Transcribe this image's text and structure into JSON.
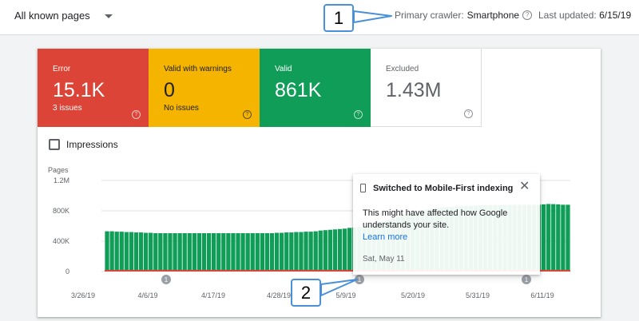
{
  "header": {
    "page_filter": "All known pages",
    "crawler_label": "Primary crawler:",
    "crawler_value": "Smartphone",
    "updated_label": "Last updated:",
    "updated_value": "6/15/19"
  },
  "tiles": {
    "error": {
      "label": "Error",
      "value": "15.1K",
      "sub": "3 issues"
    },
    "warnings": {
      "label": "Valid with warnings",
      "value": "0",
      "sub": "No issues"
    },
    "valid": {
      "label": "Valid",
      "value": "861K",
      "sub": ""
    },
    "excluded": {
      "label": "Excluded",
      "value": "1.43M",
      "sub": ""
    }
  },
  "impressions_label": "Impressions",
  "chart_data": {
    "type": "bar",
    "ylabel": "Pages",
    "yticks": [
      "1.2M",
      "800K",
      "400K",
      "0"
    ],
    "ylim": [
      0,
      1200000
    ],
    "xticks": [
      "3/26/19",
      "4/6/19",
      "4/17/19",
      "4/28/19",
      "5/9/19",
      "5/20/19",
      "5/31/19",
      "6/11/19"
    ],
    "colors": {
      "valid": "#0f9d58",
      "error": "#db4437",
      "grid": "#e0e0e0"
    },
    "annotation_marker": "1",
    "series": [
      {
        "name": "Valid",
        "values": [
          530000,
          530000,
          525000,
          525000,
          520000,
          520000,
          515000,
          515000,
          510000,
          510000,
          505000,
          505000,
          505000,
          505000,
          505000,
          505000,
          505000,
          505000,
          505000,
          505000,
          505000,
          505000,
          505000,
          505000,
          505000,
          505000,
          505000,
          505000,
          505000,
          505000,
          505000,
          505000,
          505000,
          505000,
          505000,
          510000,
          510000,
          515000,
          515000,
          520000,
          520000,
          525000,
          525000,
          530000,
          540000,
          545000,
          550000,
          555000,
          560000,
          565000,
          575000,
          580000,
          590000,
          600000,
          610000,
          625000,
          640000,
          660000,
          680000,
          700000,
          720000,
          740000,
          760000,
          780000,
          800000,
          810000,
          820000,
          830000,
          840000,
          845000,
          850000,
          855000,
          860000,
          862000,
          865000,
          868000,
          870000,
          872000,
          875000,
          876000,
          877000,
          878000,
          879000,
          880000,
          880000,
          880000,
          880000,
          880000,
          880000,
          880000,
          885000,
          890000,
          888000,
          885000,
          880000,
          880000
        ]
      },
      {
        "name": "Error",
        "values": [
          15000,
          15000
        ]
      }
    ]
  },
  "tooltip": {
    "title": "Switched to Mobile-First indexing",
    "body": "This might have affected how Google understands your site.",
    "link": "Learn more",
    "date": "Sat, May 11"
  },
  "callouts": {
    "one": "1",
    "two": "2"
  }
}
